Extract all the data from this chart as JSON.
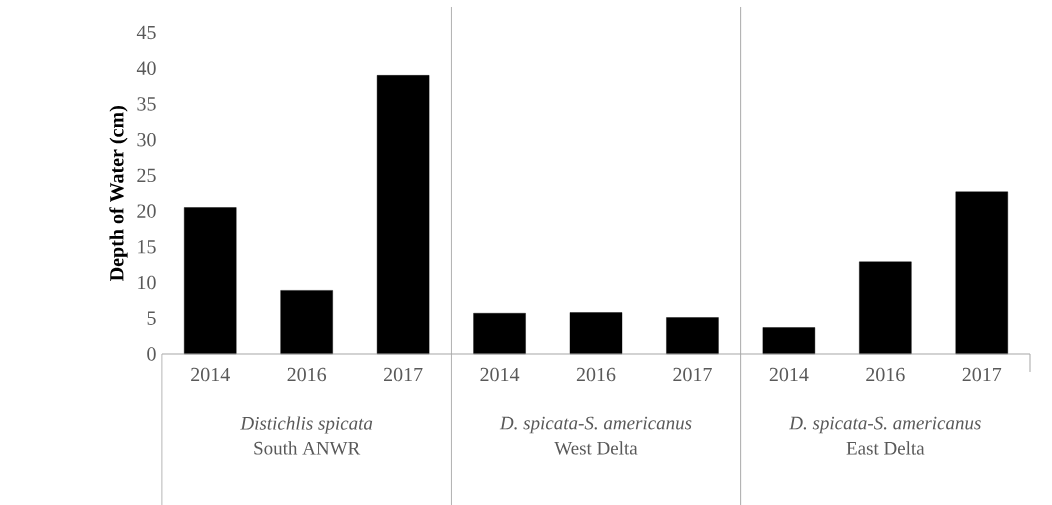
{
  "chart_data": {
    "type": "bar",
    "ylabel": "Depth of Water (cm)",
    "categories": [
      "2014",
      "2016",
      "2017",
      "2014",
      "2016",
      "2017",
      "2014",
      "2016",
      "2017"
    ],
    "values": [
      20.5,
      8.9,
      39.0,
      5.7,
      5.8,
      5.1,
      3.7,
      12.9,
      22.7
    ],
    "color": "#000000",
    "ylim": [
      0,
      45
    ],
    "yticks": [
      0,
      5,
      10,
      15,
      20,
      25,
      30,
      35,
      40,
      45
    ],
    "annotations": [
      "Distichlis spicata",
      "South ANWR",
      "D. spicata-S. americanus",
      "West Delta",
      "D. spicata-S. americanus",
      "East Delta"
    ]
  }
}
